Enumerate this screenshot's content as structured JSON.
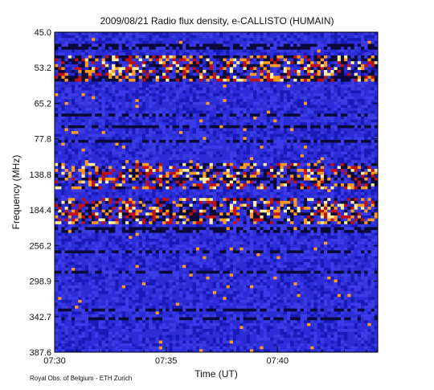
{
  "chart_data": {
    "type": "heatmap",
    "title": "2009/08/21  Radio flux density, e-CALLISTO (HUMAIN)",
    "xlabel": "Time (UT)",
    "ylabel": "Frequency (MHz)",
    "x_ticks": [
      "07:30",
      "07:35",
      "07:40"
    ],
    "y_ticks": [
      "45.0",
      "53.2",
      "65.2",
      "77.8",
      "138.8",
      "184.4",
      "256.2",
      "298.9",
      "342.7",
      "387.6"
    ],
    "x_range": [
      "07:30",
      "07:44:30"
    ],
    "y_range": [
      45.0,
      387.6
    ],
    "colormap": [
      "#0a0a3a",
      "#1a1ab8",
      "#2d2dd8",
      "#3b3be8",
      "#c01010",
      "#ff9a20",
      "#fff0a0"
    ],
    "bright_bands_mhz": [
      53.2,
      138.8,
      184.4
    ],
    "credit": "Royal Obs. of Belgium - ETH Zurich"
  }
}
